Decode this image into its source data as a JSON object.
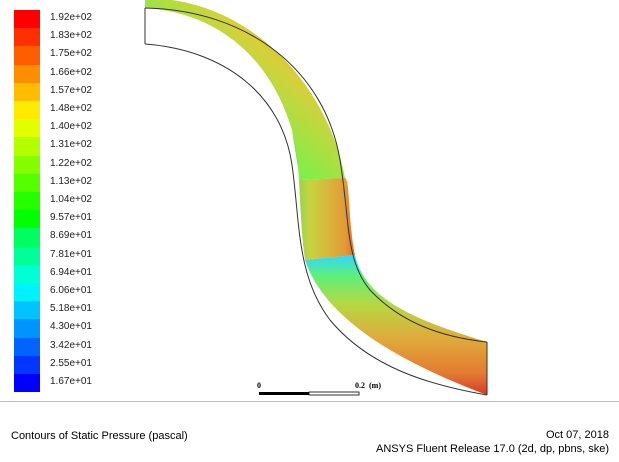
{
  "legend": {
    "levels": [
      {
        "label": "1.92e+02",
        "color": "#ff0000"
      },
      {
        "label": "1.83e+02",
        "color": "#ff2f00"
      },
      {
        "label": "1.75e+02",
        "color": "#ff5e00"
      },
      {
        "label": "1.66e+02",
        "color": "#ff8d00"
      },
      {
        "label": "1.57e+02",
        "color": "#ffbc00"
      },
      {
        "label": "1.48e+02",
        "color": "#ffeb00"
      },
      {
        "label": "1.40e+02",
        "color": "#e2ff00"
      },
      {
        "label": "1.31e+02",
        "color": "#b3ff00"
      },
      {
        "label": "1.22e+02",
        "color": "#84ff00"
      },
      {
        "label": "1.13e+02",
        "color": "#55ff00"
      },
      {
        "label": "1.04e+02",
        "color": "#26ff00"
      },
      {
        "label": "9.57e+01",
        "color": "#00ff00"
      },
      {
        "label": "8.69e+01",
        "color": "#00ff5e"
      },
      {
        "label": "7.81e+01",
        "color": "#00ff99"
      },
      {
        "label": "6.94e+01",
        "color": "#00ffd5"
      },
      {
        "label": "6.06e+01",
        "color": "#00f2ff"
      },
      {
        "label": "5.18e+01",
        "color": "#00c3ff"
      },
      {
        "label": "4.30e+01",
        "color": "#0094ff"
      },
      {
        "label": "3.42e+01",
        "color": "#0065ff"
      },
      {
        "label": "2.55e+01",
        "color": "#0036ff"
      },
      {
        "label": "1.67e+01",
        "color": "#0000ff"
      }
    ]
  },
  "scale_bar": {
    "start_label": "0",
    "end_label": "0.2",
    "unit_label": "(m)"
  },
  "footer": {
    "caption": "Contours of Static Pressure (pascal)",
    "date": "Oct 07, 2018",
    "release": "ANSYS Fluent Release 17.0 (2d, dp, pbns, ske)"
  }
}
